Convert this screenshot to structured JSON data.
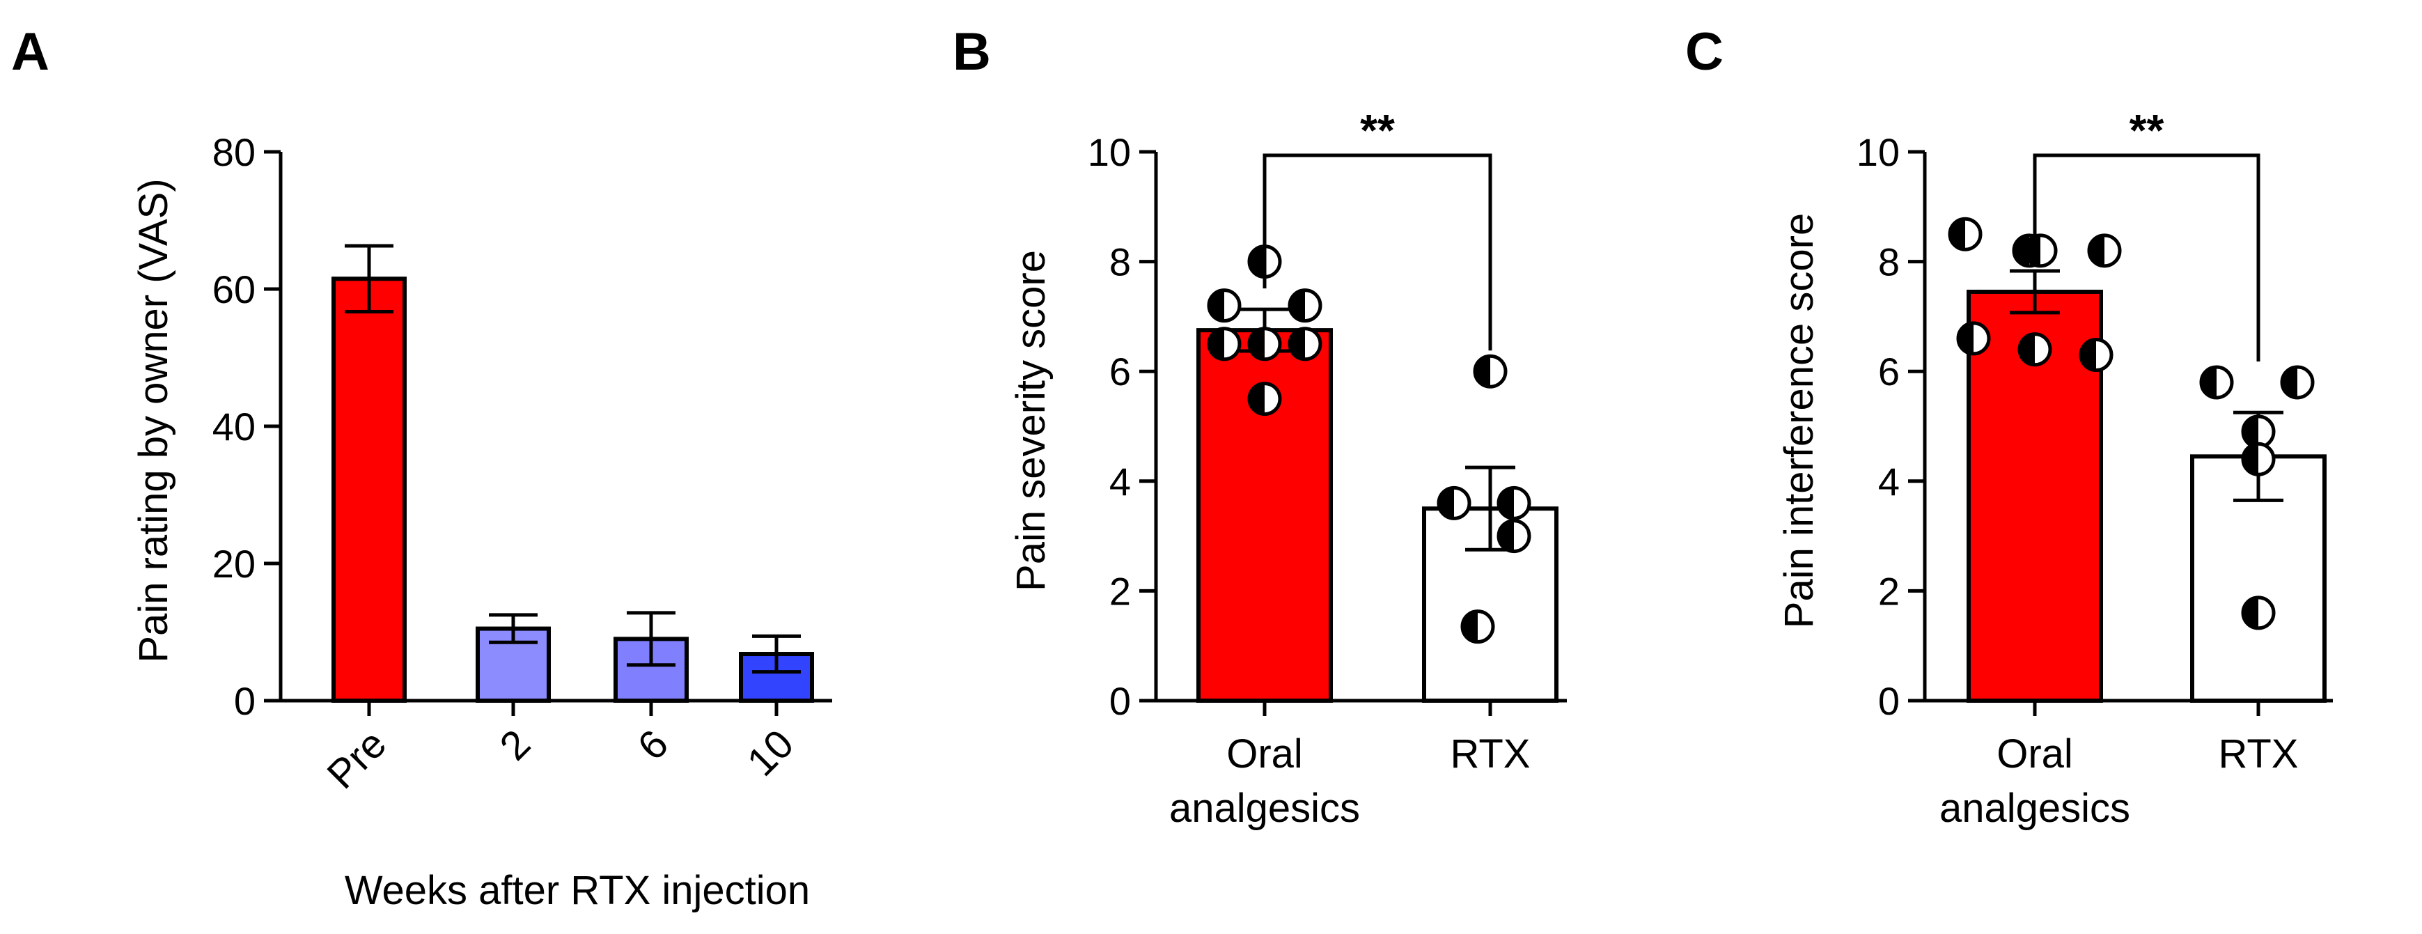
{
  "panels": [
    "A",
    "B",
    "C"
  ],
  "chart_data": [
    {
      "type": "bar",
      "panel": "A",
      "title": "",
      "ylabel": "Pain rating by owner (VAS)",
      "xlabel": "Weeks after RTX injection",
      "ylim": [
        0,
        80
      ],
      "yticks": [
        0,
        20,
        40,
        60,
        80
      ],
      "categories": [
        "Pre",
        "2",
        "6",
        "10"
      ],
      "values": [
        61.5,
        10.5,
        9,
        6.8
      ],
      "error": [
        4.8,
        2,
        3.8,
        2.6
      ],
      "colors": [
        "#ff0000",
        "#8c8cff",
        "#8080ff",
        "#3344ff"
      ],
      "x_tick_labels_rotated": true
    },
    {
      "type": "bar",
      "panel": "B",
      "title": "",
      "ylabel": "Pain severity score",
      "xlabel": "",
      "ylim": [
        0,
        10
      ],
      "yticks": [
        0,
        2,
        4,
        6,
        8,
        10
      ],
      "categories": [
        "Oral analgesics",
        "RTX"
      ],
      "category_lines": [
        [
          "Oral",
          "analgesics"
        ],
        [
          "RTX"
        ]
      ],
      "values": [
        6.75,
        3.5
      ],
      "error": [
        0.38,
        0.75
      ],
      "colors": [
        "#ff0000",
        "#ffffff"
      ],
      "points": [
        [
          8.0,
          7.2,
          7.2,
          6.5,
          6.5,
          6.5,
          5.5
        ],
        [
          6.0,
          3.6,
          3.6,
          3.0,
          1.35
        ]
      ],
      "significance": "**"
    },
    {
      "type": "bar",
      "panel": "C",
      "title": "",
      "ylabel": "Pain interference score",
      "xlabel": "",
      "ylim": [
        0,
        10
      ],
      "yticks": [
        0,
        2,
        4,
        6,
        8,
        10
      ],
      "categories": [
        "Oral analgesics",
        "RTX"
      ],
      "category_lines": [
        [
          "Oral",
          "analgesics"
        ],
        [
          "RTX"
        ]
      ],
      "values": [
        7.45,
        4.45
      ],
      "error": [
        0.38,
        0.8
      ],
      "colors": [
        "#ff0000",
        "#ffffff"
      ],
      "points": [
        [
          8.5,
          8.2,
          8.2,
          8.2,
          6.6,
          6.4,
          6.3
        ],
        [
          5.8,
          5.8,
          4.9,
          4.4,
          1.6
        ]
      ],
      "significance": "**"
    }
  ]
}
